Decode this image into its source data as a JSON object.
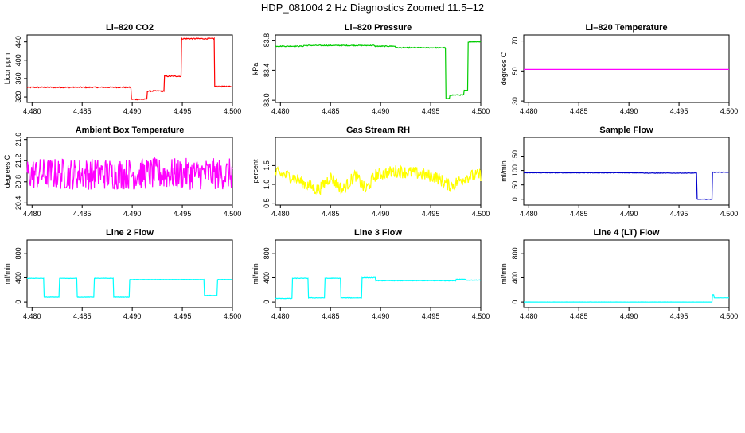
{
  "title": "HDP_081004  2 Hz Diagnostics Zoomed 11.5–12",
  "chart_data": [
    {
      "type": "line",
      "title": "Li–820 CO2",
      "ylabel": "Licor ppm",
      "color": "#ff0000",
      "xlim": [
        4.4795,
        4.5
      ],
      "ylim": [
        308,
        455
      ],
      "xticks": [
        "4.480",
        "4.485",
        "4.490",
        "4.495",
        "4.500"
      ],
      "yticks": [
        "320",
        "360",
        "400",
        "440"
      ],
      "series": [
        {
          "style": "steps",
          "noise": 1.2,
          "x": [
            4.4795,
            4.4899,
            4.4915,
            4.4932,
            4.4949,
            4.4982,
            4.5
          ],
          "y": [
            341,
            315,
            333,
            365,
            447,
            343,
            343
          ]
        }
      ]
    },
    {
      "type": "line",
      "title": "Li–820 Pressure",
      "ylabel": "kPa",
      "color": "#00cc00",
      "xlim": [
        4.4795,
        4.5
      ],
      "ylim": [
        82.97,
        83.87
      ],
      "xticks": [
        "4.480",
        "4.485",
        "4.490",
        "4.495",
        "4.500"
      ],
      "yticks": [
        "83.0",
        "83.4",
        "83.8"
      ],
      "series": [
        {
          "style": "steps",
          "noise": 0.006,
          "x": [
            4.4795,
            4.4823,
            4.4858,
            4.4894,
            4.4915,
            4.4965,
            4.4969,
            4.4983,
            4.4987,
            4.5
          ],
          "y": [
            83.72,
            83.73,
            83.73,
            83.72,
            83.7,
            83.02,
            83.07,
            83.13,
            83.78,
            83.76
          ]
        }
      ]
    },
    {
      "type": "line",
      "title": "Li–820 Temperature",
      "ylabel": "degrees C",
      "color": "#ff00ff",
      "xlim": [
        4.4795,
        4.5
      ],
      "ylim": [
        29,
        74
      ],
      "xticks": [
        "4.480",
        "4.485",
        "4.490",
        "4.495",
        "4.500"
      ],
      "yticks": [
        "30",
        "50",
        "70"
      ],
      "series": [
        {
          "style": "steps",
          "noise": 0,
          "x": [
            4.4795,
            4.5
          ],
          "y": [
            51,
            51
          ]
        }
      ]
    },
    {
      "type": "line",
      "title": "Ambient Box Temperature",
      "ylabel": "degrees C",
      "color": "#ff00ff",
      "xlim": [
        4.4795,
        4.5
      ],
      "ylim": [
        20.36,
        21.64
      ],
      "xticks": [
        "4.480",
        "4.485",
        "4.490",
        "4.495",
        "4.500"
      ],
      "yticks": [
        "20.4",
        "20.8",
        "21.2",
        "21.6"
      ],
      "series": [
        {
          "style": "noise",
          "noise": 0.3,
          "x": [
            4.4795,
            4.5
          ],
          "y": [
            20.95,
            20.95
          ]
        }
      ]
    },
    {
      "type": "line",
      "title": "Gas Stream RH",
      "ylabel": "percent",
      "color": "#ffff00",
      "xlim": [
        4.4795,
        4.5
      ],
      "ylim": [
        0.45,
        2.25
      ],
      "xticks": [
        "4.480",
        "4.485",
        "4.490",
        "4.495",
        "4.500"
      ],
      "yticks": [
        "0.5",
        "1.0",
        "1.5"
      ],
      "series": [
        {
          "style": "noise",
          "noise": 0.17,
          "x": [
            4.4795,
            4.4812,
            4.4822,
            4.4838,
            4.485,
            4.4862,
            4.4875,
            4.4885,
            4.4895,
            4.4915,
            4.4935,
            4.4955,
            4.497,
            4.4985,
            4.5
          ],
          "y": [
            1.3,
            1.2,
            1.05,
            0.85,
            1.2,
            0.85,
            1.25,
            0.85,
            1.25,
            1.35,
            1.3,
            1.2,
            0.95,
            1.2,
            1.25
          ]
        }
      ]
    },
    {
      "type": "line",
      "title": "Sample Flow",
      "ylabel": "ml/min",
      "color": "#0000cc",
      "xlim": [
        4.4795,
        4.5
      ],
      "ylim": [
        -20,
        215
      ],
      "xticks": [
        "4.480",
        "4.485",
        "4.490",
        "4.495",
        "4.500"
      ],
      "yticks": [
        "0",
        "50",
        "100",
        "150"
      ],
      "series": [
        {
          "style": "steps",
          "noise": 0.8,
          "x": [
            4.4795,
            4.4915,
            4.4968,
            4.4983,
            4.5
          ],
          "y": [
            92,
            91,
            0,
            94,
            94
          ]
        }
      ]
    },
    {
      "type": "line",
      "title": "Line 2 Flow",
      "ylabel": "ml/min",
      "color": "#00ffff",
      "xlim": [
        4.4795,
        4.5
      ],
      "ylim": [
        -90,
        1020
      ],
      "xticks": [
        "4.480",
        "4.485",
        "4.490",
        "4.495",
        "4.500"
      ],
      "yticks": [
        "0",
        "400",
        "800"
      ],
      "series": [
        {
          "style": "steps",
          "noise": 3,
          "x": [
            4.4795,
            4.4812,
            4.4827,
            4.4845,
            4.4862,
            4.4881,
            4.4897,
            4.4972,
            4.4985,
            4.5
          ],
          "y": [
            390,
            80,
            390,
            80,
            390,
            80,
            370,
            110,
            370,
            370
          ]
        }
      ]
    },
    {
      "type": "line",
      "title": "Line 3 Flow",
      "ylabel": "ml/min",
      "color": "#00ffff",
      "xlim": [
        4.4795,
        4.5
      ],
      "ylim": [
        -90,
        1020
      ],
      "xticks": [
        "4.480",
        "4.485",
        "4.490",
        "4.495",
        "4.500"
      ],
      "yticks": [
        "0",
        "400",
        "800"
      ],
      "series": [
        {
          "style": "steps",
          "noise": 4,
          "x": [
            4.4795,
            4.4812,
            4.4828,
            4.4844,
            4.486,
            4.4881,
            4.4895,
            4.4975,
            4.4985,
            4.5
          ],
          "y": [
            60,
            390,
            70,
            390,
            70,
            400,
            350,
            375,
            360,
            360
          ]
        }
      ]
    },
    {
      "type": "line",
      "title": "Line 4 (LT) Flow",
      "ylabel": "ml/min",
      "color": "#00ffff",
      "xlim": [
        4.4795,
        4.5
      ],
      "ylim": [
        -90,
        1020
      ],
      "xticks": [
        "4.480",
        "4.485",
        "4.490",
        "4.495",
        "4.500"
      ],
      "yticks": [
        "0",
        "400",
        "800"
      ],
      "series": [
        {
          "style": "steps",
          "noise": 1,
          "x": [
            4.4795,
            4.4983,
            4.4985,
            4.5
          ],
          "y": [
            0,
            120,
            70,
            70
          ]
        }
      ]
    }
  ]
}
